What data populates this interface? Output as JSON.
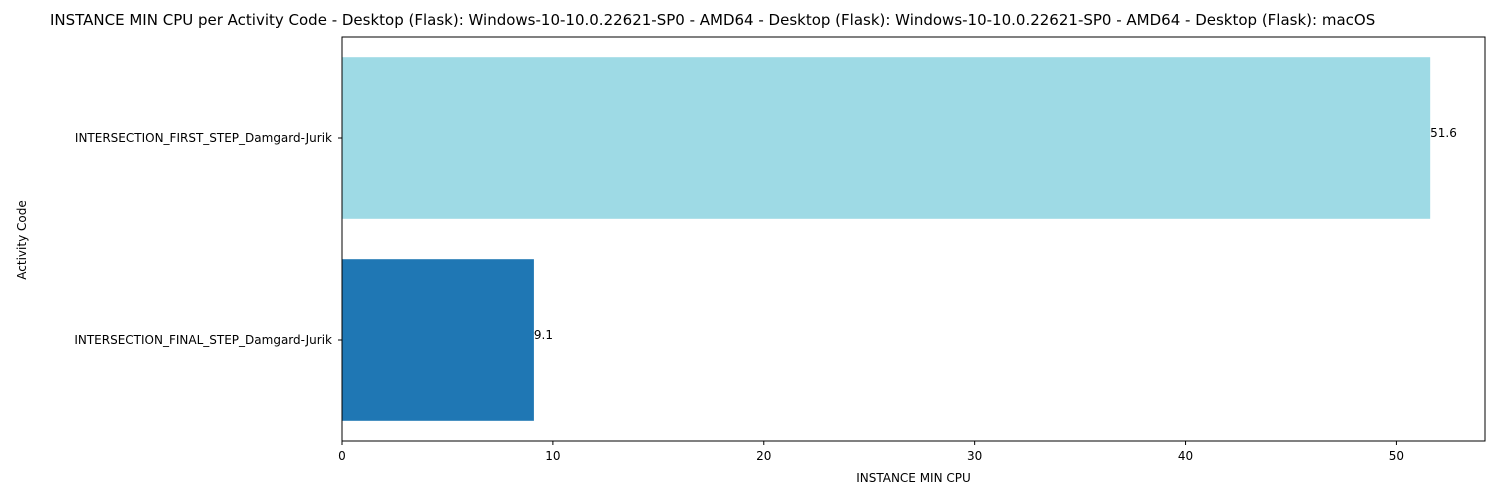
{
  "chart_data": {
    "type": "bar",
    "orientation": "horizontal",
    "title": "INSTANCE MIN CPU per Activity Code - Desktop (Flask): Windows-10-10.0.22621-SP0 - AMD64 - Desktop (Flask): Windows-10-10.0.22621-SP0 - AMD64 - Desktop (Flask): macOS",
    "xlabel": "INSTANCE MIN CPU",
    "ylabel": "Activity Code",
    "categories": [
      "INTERSECTION_FIRST_STEP_Damgard-Jurik",
      "INTERSECTION_FINAL_STEP_Damgard-Jurik"
    ],
    "values": [
      51.6,
      9.1
    ],
    "value_labels": [
      "51.6",
      "9.1"
    ],
    "bar_colors": [
      "#9edae5",
      "#1f77b4"
    ],
    "xlim": [
      0,
      54.2
    ],
    "xticks": [
      0,
      10,
      20,
      30,
      40,
      50
    ],
    "xtick_labels": [
      "0",
      "10",
      "20",
      "30",
      "40",
      "50"
    ],
    "grid": false,
    "legend": "none"
  }
}
